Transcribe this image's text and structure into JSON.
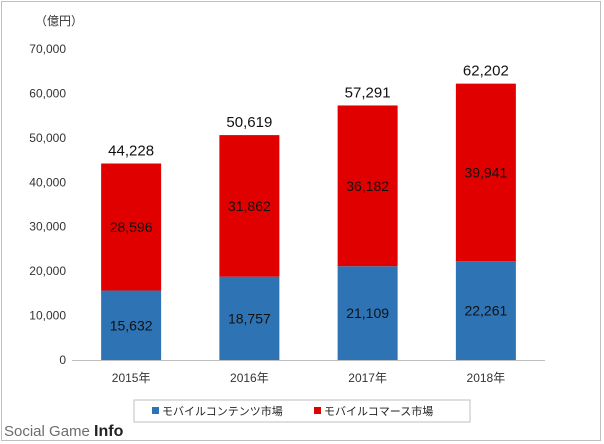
{
  "chart_data": {
    "type": "bar",
    "stacked": true,
    "unit_label": "（億円）",
    "categories": [
      "2015年",
      "2016年",
      "2017年",
      "2018年"
    ],
    "series": [
      {
        "name": "モバイルコンテンツ市場",
        "values": [
          15632,
          18757,
          21109,
          22261
        ],
        "color": "#2e74b5"
      },
      {
        "name": "モバイルコマース市場",
        "values": [
          28596,
          31862,
          36182,
          39941
        ],
        "color": "#e00000"
      }
    ],
    "totals": [
      44228,
      50619,
      57291,
      62202
    ],
    "ylim": [
      0,
      70000
    ],
    "yticks": [
      0,
      10000,
      20000,
      30000,
      40000,
      50000,
      60000,
      70000
    ],
    "ytick_labels": [
      "0",
      "10,000",
      "20,000",
      "30,000",
      "40,000",
      "50,000",
      "60,000",
      "70,000"
    ],
    "grid": false,
    "legend_position": "bottom"
  },
  "watermark": {
    "text_light": "Social Game ",
    "text_bold": "Info"
  }
}
